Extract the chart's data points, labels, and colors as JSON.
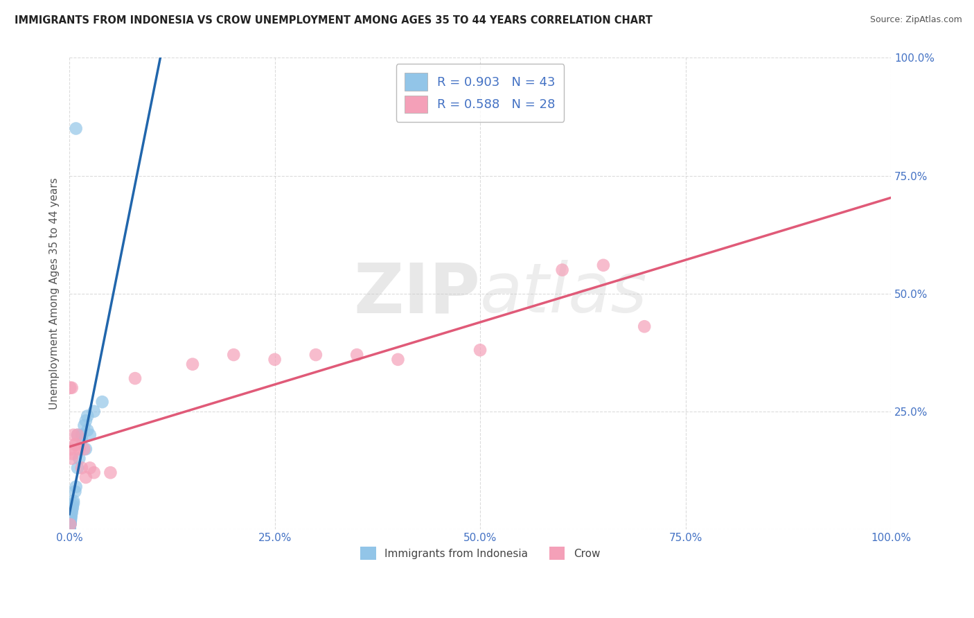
{
  "title": "IMMIGRANTS FROM INDONESIA VS CROW UNEMPLOYMENT AMONG AGES 35 TO 44 YEARS CORRELATION CHART",
  "source": "Source: ZipAtlas.com",
  "ylabel": "Unemployment Among Ages 35 to 44 years",
  "xlim": [
    0,
    1.0
  ],
  "ylim": [
    0,
    1.0
  ],
  "xticks": [
    0.0,
    0.25,
    0.5,
    0.75,
    1.0
  ],
  "yticks": [
    0.0,
    0.25,
    0.5,
    0.75,
    1.0
  ],
  "xticklabels": [
    "0.0%",
    "25.0%",
    "50.0%",
    "75.0%",
    "100.0%"
  ],
  "yticklabels_right": [
    "",
    "25.0%",
    "50.0%",
    "75.0%",
    "100.0%"
  ],
  "watermark_zip": "ZIP",
  "watermark_atlas": "atlas",
  "legend_R1": "R = 0.903",
  "legend_N1": "N = 43",
  "legend_R2": "R = 0.588",
  "legend_N2": "N = 28",
  "color_blue": "#92c5e8",
  "color_pink": "#f4a0b8",
  "color_blue_line": "#2166ac",
  "color_pink_line": "#e05a78",
  "tick_label_color": "#4472c4",
  "legend_label1": "Immigrants from Indonesia",
  "legend_label2": "Crow",
  "blue_x": [
    0.0005,
    0.0005,
    0.0005,
    0.0005,
    0.0005,
    0.0005,
    0.0005,
    0.0005,
    0.001,
    0.001,
    0.001,
    0.001,
    0.001,
    0.001,
    0.001,
    0.0015,
    0.0015,
    0.0015,
    0.002,
    0.002,
    0.002,
    0.003,
    0.003,
    0.004,
    0.004,
    0.005,
    0.005,
    0.007,
    0.008,
    0.01,
    0.012,
    0.015,
    0.018,
    0.02,
    0.022,
    0.03,
    0.04,
    0.015,
    0.022,
    0.025,
    0.02,
    0.01,
    0.008
  ],
  "blue_y": [
    0.002,
    0.003,
    0.004,
    0.005,
    0.006,
    0.007,
    0.008,
    0.009,
    0.01,
    0.011,
    0.012,
    0.013,
    0.014,
    0.015,
    0.016,
    0.018,
    0.02,
    0.022,
    0.025,
    0.028,
    0.03,
    0.035,
    0.04,
    0.045,
    0.05,
    0.055,
    0.06,
    0.08,
    0.09,
    0.13,
    0.15,
    0.2,
    0.22,
    0.23,
    0.24,
    0.25,
    0.27,
    0.19,
    0.21,
    0.2,
    0.17,
    0.2,
    0.85
  ],
  "pink_x": [
    0.001,
    0.001,
    0.002,
    0.003,
    0.003,
    0.004,
    0.005,
    0.007,
    0.008,
    0.01,
    0.012,
    0.015,
    0.018,
    0.02,
    0.025,
    0.03,
    0.05,
    0.08,
    0.15,
    0.2,
    0.25,
    0.3,
    0.35,
    0.4,
    0.5,
    0.6,
    0.65,
    0.7
  ],
  "pink_y": [
    0.01,
    0.3,
    0.17,
    0.15,
    0.3,
    0.16,
    0.2,
    0.18,
    0.18,
    0.2,
    0.17,
    0.13,
    0.17,
    0.11,
    0.13,
    0.12,
    0.12,
    0.32,
    0.35,
    0.37,
    0.36,
    0.37,
    0.37,
    0.36,
    0.38,
    0.55,
    0.56,
    0.43
  ]
}
